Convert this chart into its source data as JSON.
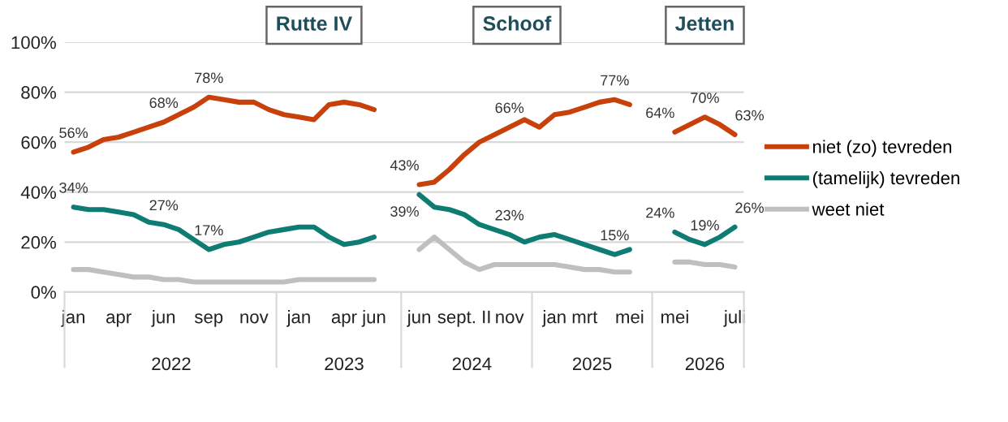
{
  "chart_data": {
    "type": "line",
    "categories": [
      "jan",
      null,
      null,
      "apr",
      null,
      null,
      "jun",
      null,
      null,
      "sep",
      null,
      null,
      "nov",
      null,
      null,
      "jan",
      null,
      null,
      "apr",
      null,
      "jun",
      null,
      null,
      "jun",
      null,
      null,
      "sept. II",
      null,
      null,
      "nov",
      null,
      null,
      "jan",
      null,
      "mrt",
      null,
      null,
      "mei",
      null,
      null,
      "mei",
      null,
      null,
      null,
      "juli"
    ],
    "series": [
      {
        "name": "niet (zo) tevreden",
        "color": "#c8410b",
        "values": [
          56,
          58,
          61,
          62,
          64,
          66,
          68,
          71,
          74,
          78,
          77,
          76,
          76,
          73,
          71,
          70,
          69,
          75,
          76,
          75,
          73,
          null,
          null,
          43,
          44,
          49,
          55,
          60,
          63,
          66,
          69,
          66,
          71,
          72,
          74,
          76,
          77,
          75,
          null,
          null,
          64,
          67,
          70,
          67,
          63
        ],
        "value_labels": [
          "56%",
          null,
          null,
          null,
          null,
          null,
          "68%",
          null,
          null,
          "78%",
          null,
          null,
          null,
          null,
          null,
          null,
          null,
          null,
          null,
          null,
          null,
          null,
          null,
          "43%",
          null,
          null,
          null,
          null,
          null,
          "66%",
          null,
          null,
          null,
          null,
          null,
          null,
          "77%",
          null,
          null,
          null,
          "64%",
          null,
          "70%",
          null,
          "63%"
        ]
      },
      {
        "name": "(tamelijk) tevreden",
        "color": "#0e7c73",
        "values": [
          34,
          33,
          33,
          32,
          31,
          28,
          27,
          25,
          21,
          17,
          19,
          20,
          22,
          24,
          25,
          26,
          26,
          22,
          19,
          20,
          22,
          null,
          null,
          39,
          34,
          33,
          31,
          27,
          25,
          23,
          20,
          22,
          23,
          21,
          19,
          17,
          15,
          17,
          null,
          null,
          24,
          21,
          19,
          22,
          26
        ],
        "value_labels": [
          "34%",
          null,
          null,
          null,
          null,
          null,
          "27%",
          null,
          null,
          "17%",
          null,
          null,
          null,
          null,
          null,
          null,
          null,
          null,
          null,
          null,
          null,
          null,
          null,
          "39%",
          null,
          null,
          null,
          null,
          null,
          "23%",
          null,
          null,
          null,
          null,
          null,
          null,
          "15%",
          null,
          null,
          null,
          "24%",
          null,
          "19%",
          null,
          "26%"
        ]
      },
      {
        "name": "weet niet",
        "color": "#bfbfbf",
        "values": [
          9,
          9,
          8,
          7,
          6,
          6,
          5,
          5,
          4,
          4,
          4,
          4,
          4,
          4,
          4,
          5,
          5,
          5,
          5,
          5,
          5,
          null,
          null,
          17,
          22,
          17,
          12,
          9,
          11,
          11,
          11,
          11,
          11,
          10,
          9,
          9,
          8,
          8,
          null,
          null,
          12,
          12,
          11,
          11,
          10
        ]
      }
    ],
    "ylim": [
      0,
      100
    ],
    "yticks": [
      {
        "value": 0,
        "label": "0%"
      },
      {
        "value": 20,
        "label": "20%"
      },
      {
        "value": 40,
        "label": "40%"
      },
      {
        "value": 60,
        "label": "60%"
      },
      {
        "value": 80,
        "label": "80%"
      },
      {
        "value": 100,
        "label": "100%"
      }
    ],
    "grid": "y",
    "legend": "right",
    "annotations": [
      "Rutte IV",
      "Schoof",
      "Jetten",
      "2022",
      "2023",
      "2024",
      "2025",
      "2026"
    ]
  }
}
